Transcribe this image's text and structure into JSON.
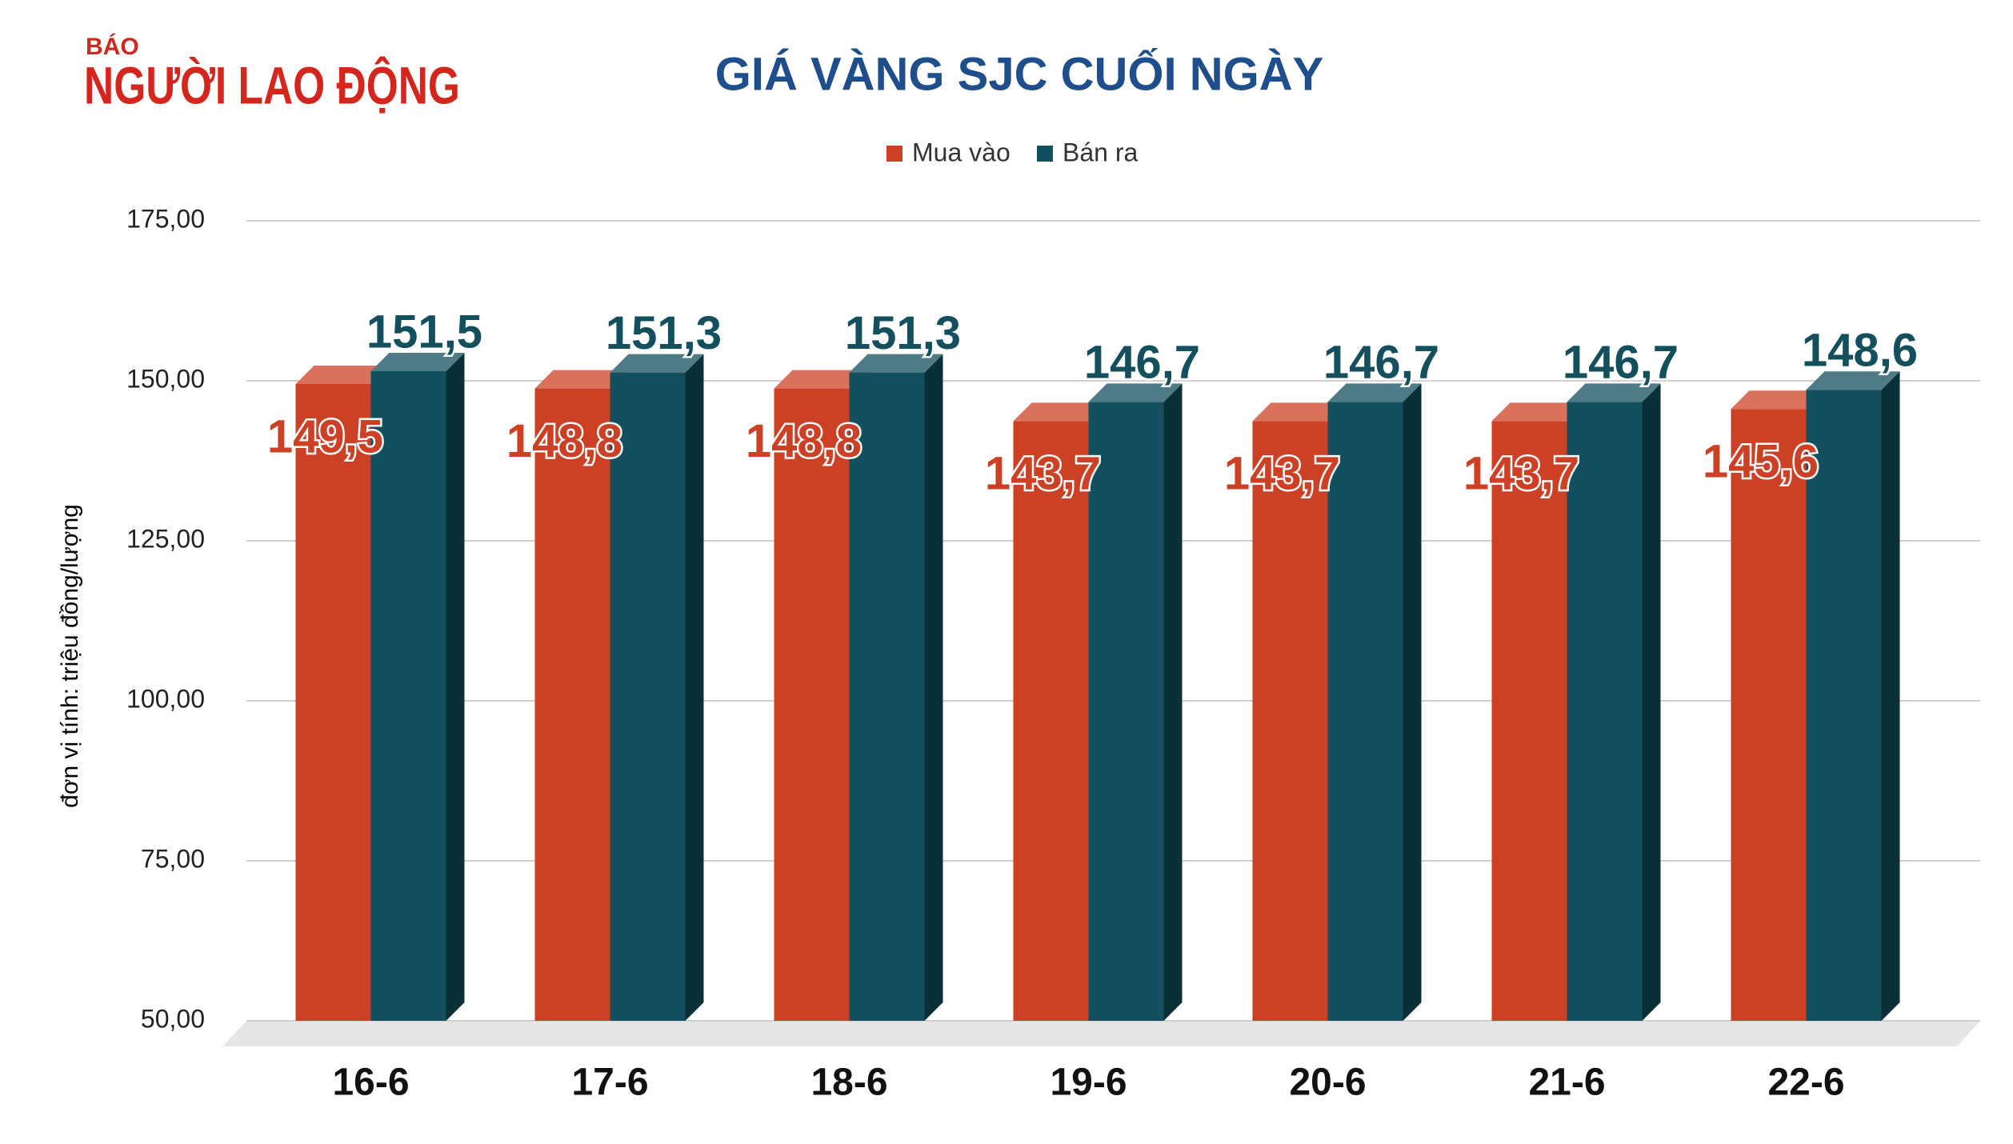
{
  "logo": {
    "small": "BÁO",
    "name": "NGƯỜI LAO ĐỘNG"
  },
  "chart_data": {
    "type": "bar3d",
    "title": "GIÁ VÀNG SJC CUỐI NGÀY",
    "y_label": "đơn vị tính: triệu đồng/lượng",
    "categories": [
      "16-6",
      "17-6",
      "18-6",
      "19-6",
      "20-6",
      "21-6",
      "22-6"
    ],
    "series": [
      {
        "name": "Mua vào",
        "color": "#cc4125",
        "values": [
          149.5,
          148.8,
          148.8,
          143.7,
          143.7,
          143.7,
          145.6
        ],
        "value_labels": [
          "149,5",
          "148,8",
          "148,8",
          "143,7",
          "143,7",
          "143,7",
          "145,6"
        ]
      },
      {
        "name": "Bán ra",
        "color": "#134f5c",
        "values": [
          151.5,
          151.3,
          151.3,
          146.7,
          146.7,
          146.7,
          148.6
        ],
        "value_labels": [
          "151,5",
          "151,3",
          "151,3",
          "146,7",
          "146,7",
          "146,7",
          "148,6"
        ]
      }
    ],
    "ylim": [
      50,
      175
    ],
    "yticks": [
      {
        "value": 50,
        "label": "50,00"
      },
      {
        "value": 75,
        "label": "75,00"
      },
      {
        "value": 100,
        "label": "100,00"
      },
      {
        "value": 125,
        "label": "125,00"
      },
      {
        "value": 150,
        "label": "150,00"
      },
      {
        "value": 175,
        "label": "175,00"
      }
    ],
    "grid": true,
    "legend": "top"
  }
}
